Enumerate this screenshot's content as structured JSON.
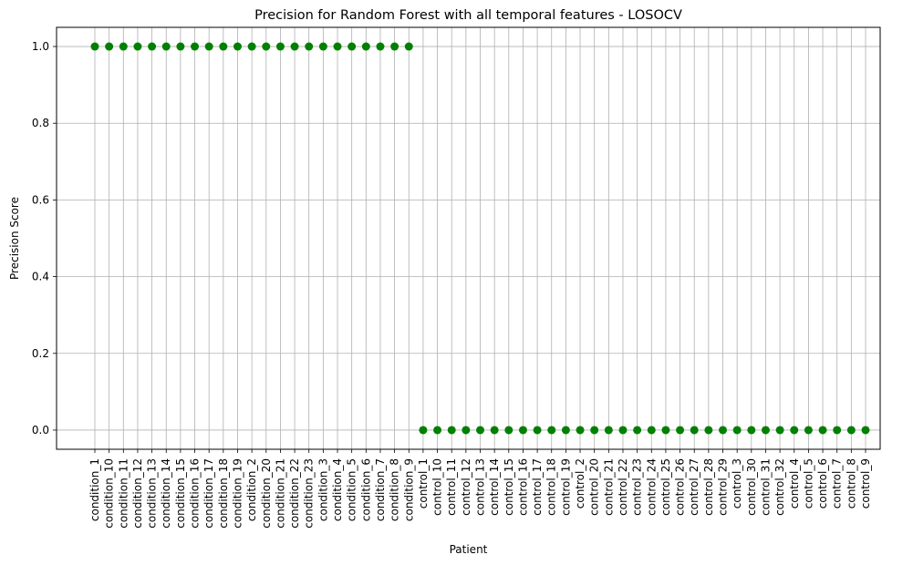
{
  "chart_data": {
    "type": "scatter",
    "title": "Precision for Random Forest with all temporal features - LOSOCV",
    "xlabel": "Patient",
    "ylabel": "Precision Score",
    "ylim": [
      -0.05,
      1.05
    ],
    "yticks": [
      0.0,
      0.2,
      0.4,
      0.6,
      0.8,
      1.0
    ],
    "ytick_labels": [
      "0.0",
      "0.2",
      "0.4",
      "0.6",
      "0.8",
      "1.0"
    ],
    "grid": true,
    "marker_color": "#008000",
    "grid_color": "#b0b0b0",
    "categories": [
      "condition_1",
      "condition_10",
      "condition_11",
      "condition_12",
      "condition_13",
      "condition_14",
      "condition_15",
      "condition_16",
      "condition_17",
      "condition_18",
      "condition_19",
      "condition_2",
      "condition_20",
      "condition_21",
      "condition_22",
      "condition_23",
      "condition_3",
      "condition_4",
      "condition_5",
      "condition_6",
      "condition_7",
      "condition_8",
      "condition_9",
      "control_1",
      "control_10",
      "control_11",
      "control_12",
      "control_13",
      "control_14",
      "control_15",
      "control_16",
      "control_17",
      "control_18",
      "control_19",
      "control_2",
      "control_20",
      "control_21",
      "control_22",
      "control_23",
      "control_24",
      "control_25",
      "control_26",
      "control_27",
      "control_28",
      "control_29",
      "control_3",
      "control_30",
      "control_31",
      "control_32",
      "control_4",
      "control_5",
      "control_6",
      "control_7",
      "control_8",
      "control_9"
    ],
    "values": [
      1,
      1,
      1,
      1,
      1,
      1,
      1,
      1,
      1,
      1,
      1,
      1,
      1,
      1,
      1,
      1,
      1,
      1,
      1,
      1,
      1,
      1,
      1,
      0,
      0,
      0,
      0,
      0,
      0,
      0,
      0,
      0,
      0,
      0,
      0,
      0,
      0,
      0,
      0,
      0,
      0,
      0,
      0,
      0,
      0,
      0,
      0,
      0,
      0,
      0,
      0,
      0,
      0,
      0,
      0
    ]
  }
}
